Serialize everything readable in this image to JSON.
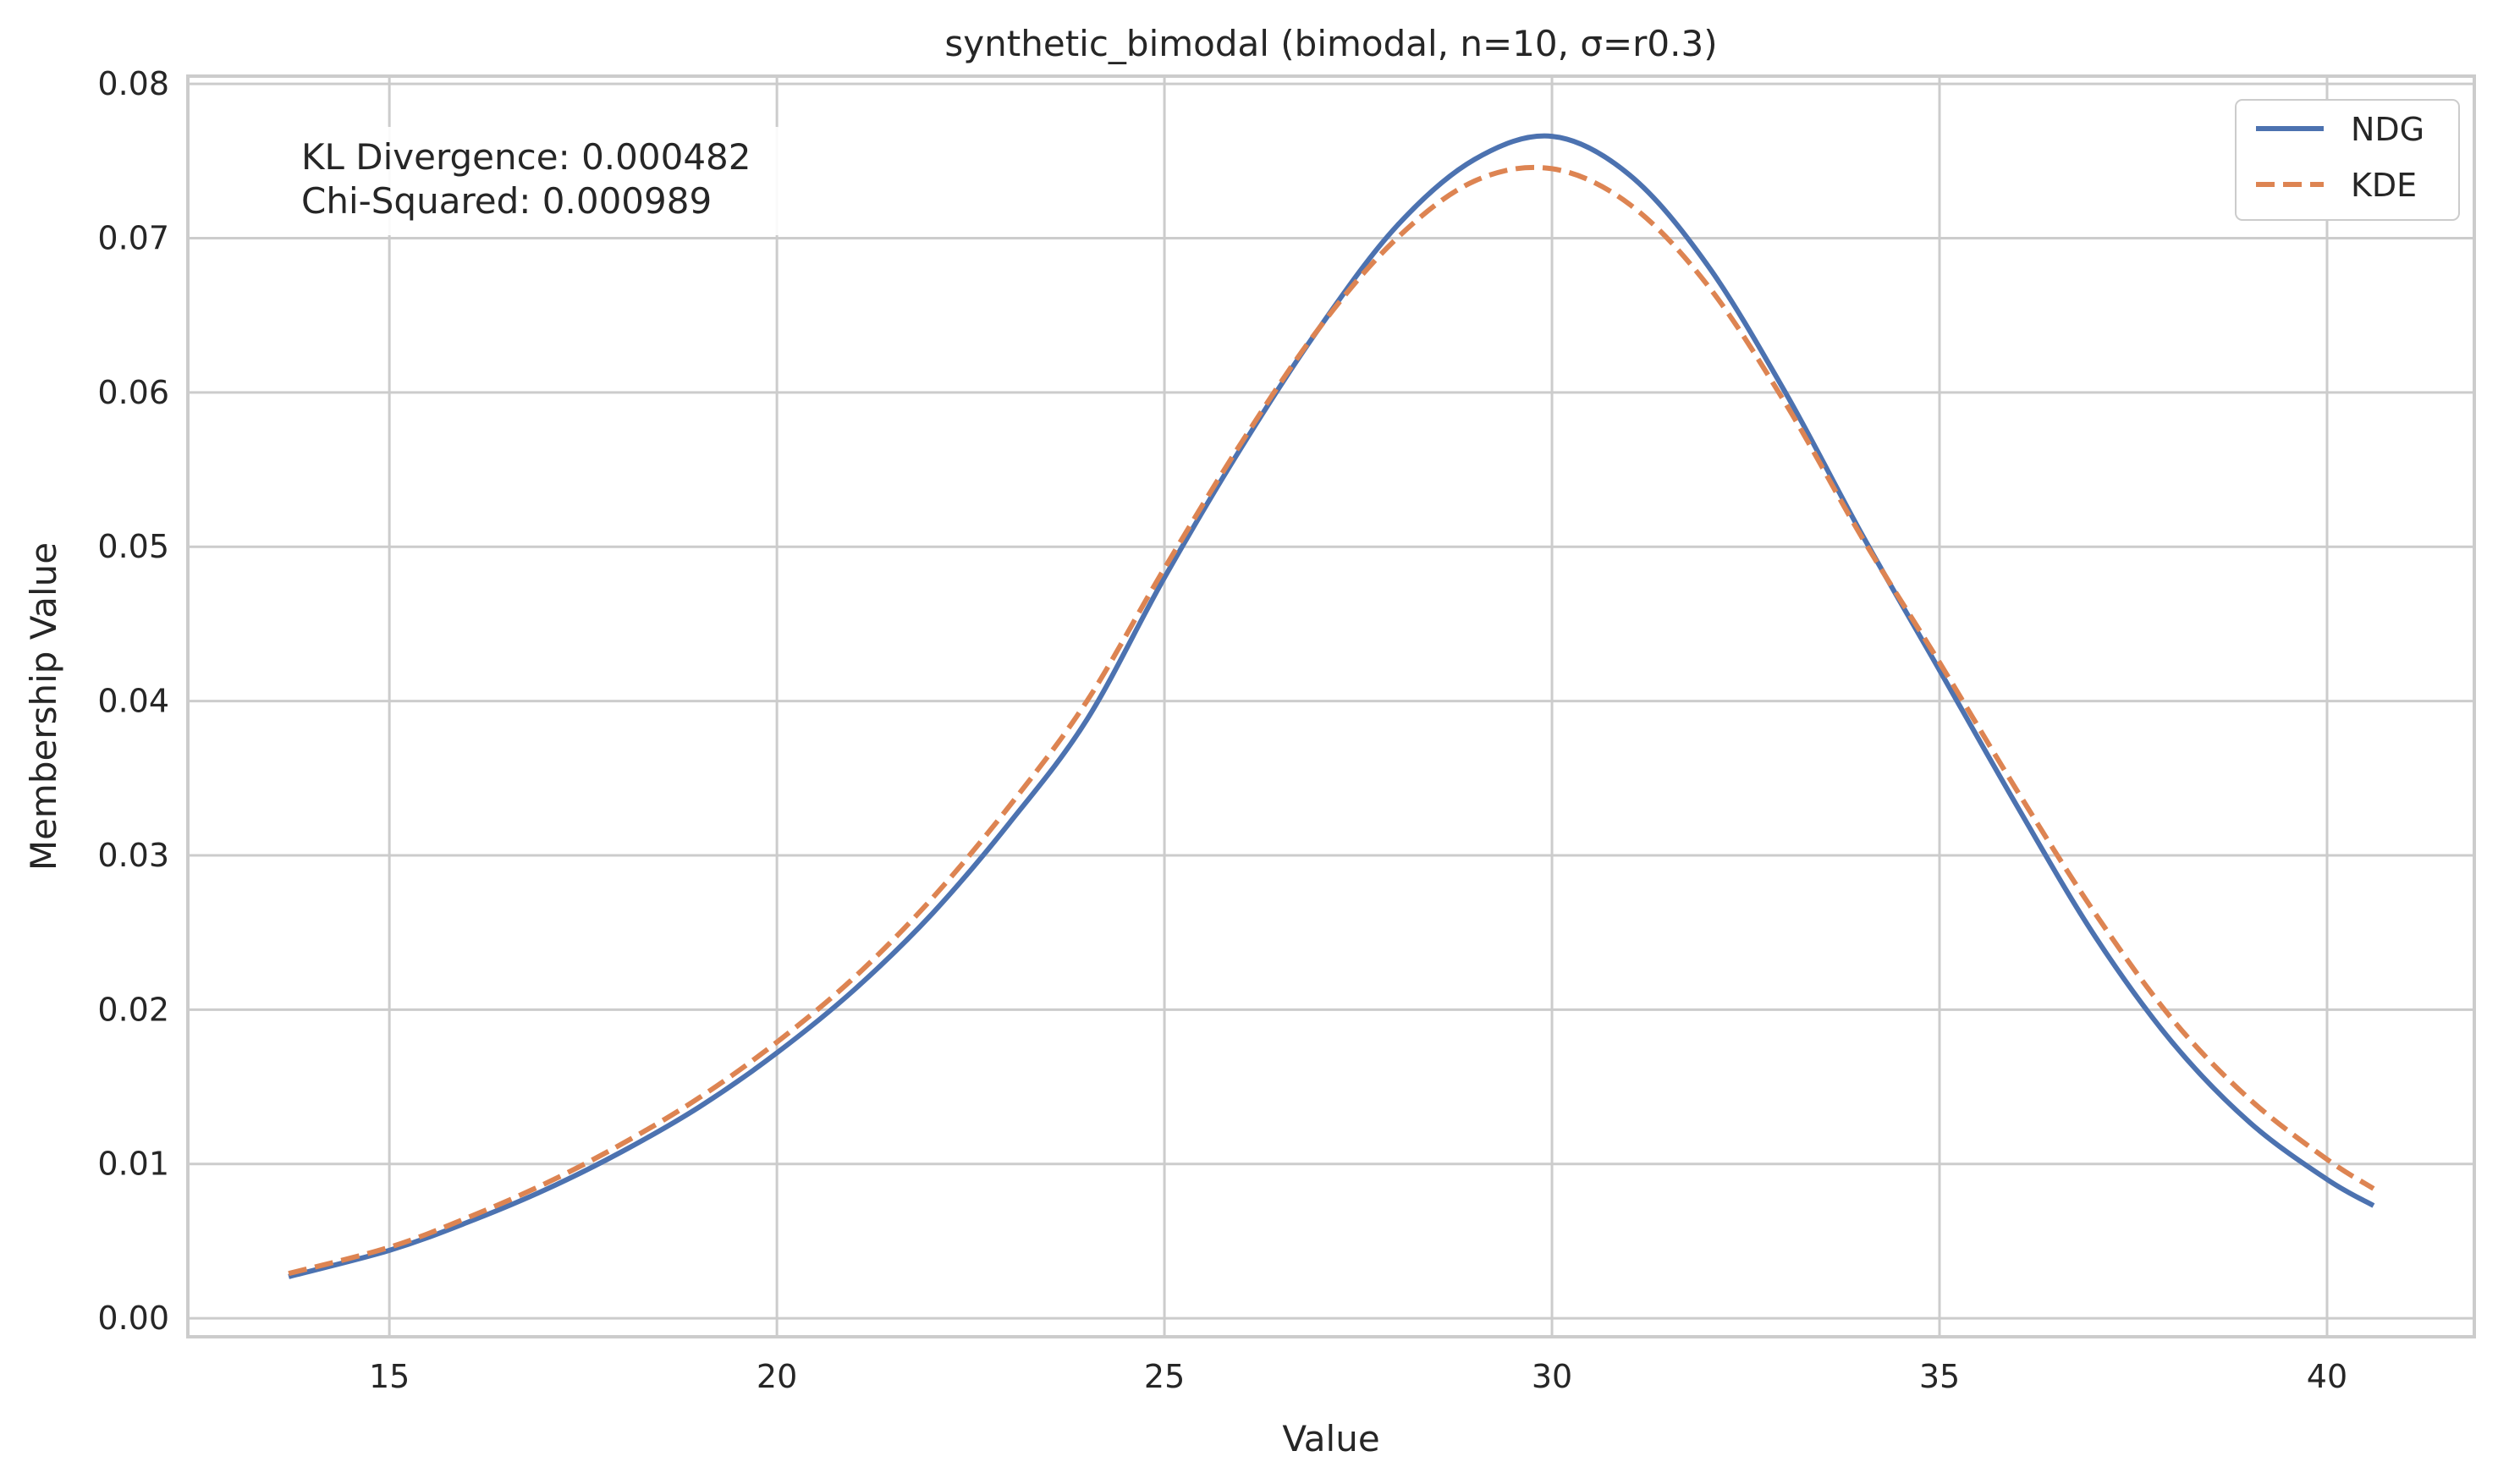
{
  "chart_data": {
    "type": "line",
    "title": "synthetic_bimodal (bimodal, n=10, σ=r0.3)",
    "xlabel": "Value",
    "ylabel": "Membership Value",
    "xlim": [
      12.4,
      41.9
    ],
    "ylim": [
      -0.0012,
      0.0805
    ],
    "xticks": [
      15,
      20,
      25,
      30,
      35,
      40
    ],
    "xtick_labels": [
      "15",
      "20",
      "25",
      "30",
      "35",
      "40"
    ],
    "yticks": [
      0.0,
      0.01,
      0.02,
      0.03,
      0.04,
      0.05,
      0.06,
      0.07,
      0.08
    ],
    "ytick_labels": [
      "0.00",
      "0.01",
      "0.02",
      "0.03",
      "0.04",
      "0.05",
      "0.06",
      "0.07",
      "0.08"
    ],
    "grid": true,
    "legend_position": "top-right",
    "annotation": [
      "KL Divergence: 0.000482",
      "Chi-Squared: 0.000989"
    ],
    "x": [
      13.7,
      15,
      16,
      17,
      18,
      19,
      20,
      21,
      22,
      23,
      24,
      25,
      26,
      27,
      28,
      29,
      30,
      31,
      32,
      33,
      34,
      35,
      36,
      37,
      38,
      39,
      40,
      40.6
    ],
    "series": [
      {
        "name": "NDG",
        "style": "solid",
        "color": "#4c72b0",
        "values": [
          0.0027,
          0.0044,
          0.0062,
          0.0083,
          0.0108,
          0.0137,
          0.0172,
          0.0213,
          0.0262,
          0.0321,
          0.0388,
          0.048,
          0.0565,
          0.0642,
          0.0708,
          0.0751,
          0.0766,
          0.0741,
          0.0683,
          0.0601,
          0.0508,
          0.042,
          0.0332,
          0.0248,
          0.0179,
          0.0127,
          0.009,
          0.0073
        ]
      },
      {
        "name": "KDE",
        "style": "dashed",
        "color": "#dd8452",
        "values": [
          0.0029,
          0.0046,
          0.0065,
          0.0087,
          0.0113,
          0.0143,
          0.0179,
          0.0221,
          0.0272,
          0.0332,
          0.04,
          0.0486,
          0.0568,
          0.0642,
          0.07,
          0.0737,
          0.0745,
          0.0722,
          0.067,
          0.0594,
          0.0506,
          0.0425,
          0.0342,
          0.0263,
          0.0194,
          0.0142,
          0.0103,
          0.0084
        ]
      }
    ]
  }
}
